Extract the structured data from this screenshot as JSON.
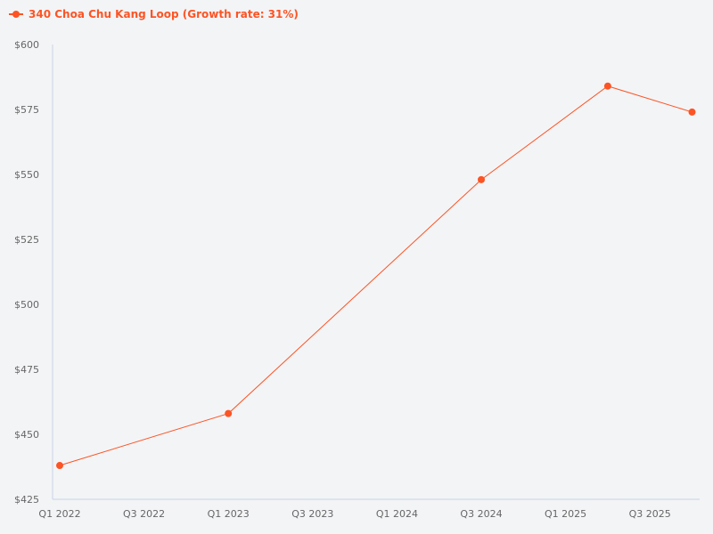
{
  "legend": {
    "label": "340 Choa Chu Kang Loop (Growth rate: 31%)",
    "color": "#fc5424"
  },
  "colors": {
    "series": "#fc5424",
    "axis": "#c8d2e6",
    "tick_text": "#666666",
    "background": "#f3f4f6"
  },
  "chart_data": {
    "type": "line",
    "title": "",
    "xlabel": "",
    "ylabel": "",
    "x_tick_labels": [
      "Q1 2022",
      "Q3 2022",
      "Q1 2023",
      "Q3 2023",
      "Q1 2024",
      "Q3 2024",
      "Q1 2025",
      "Q3 2025"
    ],
    "y_tick_labels": [
      "$425",
      "$450",
      "$475",
      "$500",
      "$525",
      "$550",
      "$575",
      "$600"
    ],
    "ylim": [
      425,
      600
    ],
    "grid": false,
    "legend_position": "top-left",
    "series": [
      {
        "name": "340 Choa Chu Kang Loop (Growth rate: 31%)",
        "points": [
          {
            "x": "Q1 2022",
            "y": 438
          },
          {
            "x": "Q1 2023",
            "y": 458
          },
          {
            "x": "Q3 2024",
            "y": 548
          },
          {
            "x": "Q2 2025",
            "y": 584
          },
          {
            "x": "Q4 2025",
            "y": 574
          }
        ]
      }
    ]
  }
}
